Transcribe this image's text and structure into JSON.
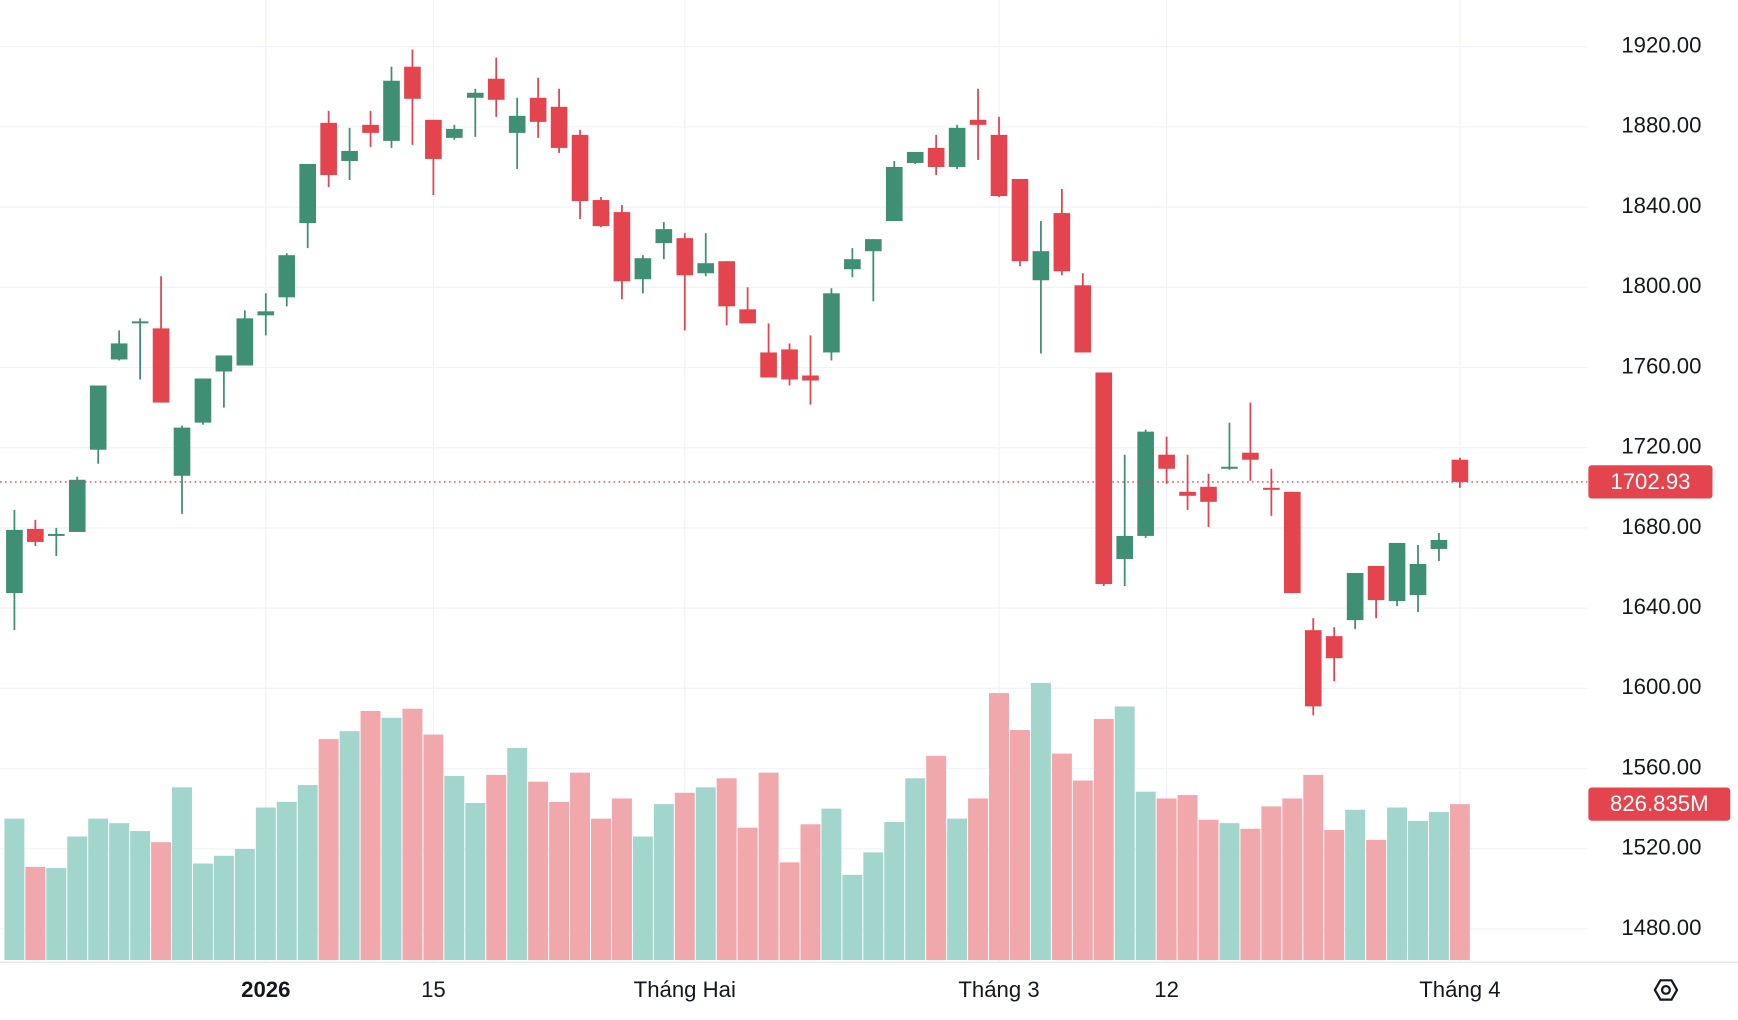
{
  "chart_data": {
    "type": "candlestick",
    "categories": [
      null,
      null,
      null,
      null,
      null,
      null,
      null,
      null,
      null,
      null,
      null,
      null,
      "2026",
      null,
      null,
      null,
      null,
      null,
      null,
      null,
      "15",
      null,
      null,
      null,
      null,
      null,
      null,
      null,
      null,
      null,
      null,
      null,
      "Tháng Hai",
      null,
      null,
      null,
      null,
      null,
      null,
      null,
      null,
      null,
      null,
      null,
      null,
      null,
      null,
      "Tháng 3",
      null,
      null,
      null,
      null,
      null,
      null,
      null,
      "12",
      null,
      null,
      null,
      null,
      null,
      null,
      null,
      null,
      null,
      null,
      null,
      null,
      null,
      "Tháng 4"
    ],
    "open": [
      1647.5,
      1679.5,
      1676,
      1678,
      1719,
      1764,
      1782,
      1779.5,
      1706,
      1732.5,
      1758,
      1761,
      1786,
      1795,
      1832,
      1882,
      1863,
      1881,
      1873,
      1910,
      1883.5,
      1874.5,
      1894.5,
      1904,
      1877,
      1894.5,
      1890,
      1876,
      1843.5,
      1837.5,
      1804,
      1822,
      1824.5,
      1807,
      1813,
      1789,
      1767.5,
      1769,
      1756,
      1767.5,
      1809,
      1818,
      1833,
      1862,
      1869.5,
      1860,
      1883.5,
      1876,
      1854,
      1803.5,
      1837,
      1801,
      1757.5,
      1664.5,
      1676,
      1716.5,
      1698,
      1700.5,
      1709.5,
      1717.5,
      1700,
      1698,
      1629,
      1626,
      1634,
      1661,
      1643.5,
      1646.5,
      1669.5,
      1714
    ],
    "high": [
      1689,
      1684,
      1680,
      1705.5,
      1751,
      1778.5,
      1784.5,
      1805.5,
      1731,
      1754.5,
      1766,
      1788.5,
      1797,
      1817,
      1861.5,
      1888,
      1879.5,
      1888,
      1910,
      1918.5,
      1883.5,
      1881,
      1899,
      1914.5,
      1894.5,
      1904.5,
      1899,
      1878.5,
      1845,
      1841,
      1816,
      1832.5,
      1827,
      1827,
      1813,
      1800,
      1782,
      1772,
      1776,
      1799.5,
      1819.5,
      1824,
      1863,
      1867.5,
      1876,
      1881,
      1899,
      1885,
      1854,
      1833,
      1849,
      1807,
      1757.5,
      1716.5,
      1729,
      1725.5,
      1716.5,
      1707,
      1732.5,
      1742.5,
      1709.5,
      1698,
      1635,
      1630.5,
      1657.5,
      1661,
      1672.5,
      1671.5,
      1677.5,
      1715
    ],
    "low": [
      1629,
      1671,
      1666,
      1678,
      1712,
      1763.5,
      1754,
      1742.5,
      1687,
      1731.5,
      1740,
      1761,
      1776,
      1790.5,
      1819.5,
      1850,
      1853.5,
      1870,
      1869.5,
      1871,
      1846,
      1873.5,
      1875,
      1885,
      1859,
      1874.5,
      1867,
      1834,
      1830,
      1794,
      1797,
      1814,
      1778.5,
      1805.5,
      1781,
      1782,
      1755,
      1751,
      1741.5,
      1763.5,
      1805,
      1793,
      1833,
      1861.5,
      1856,
      1859,
      1863.5,
      1845,
      1810.5,
      1767,
      1806,
      1767.5,
      1651,
      1651,
      1675,
      1702,
      1689,
      1680.5,
      1709,
      1703.5,
      1686,
      1647.5,
      1586.5,
      1603.5,
      1629.5,
      1635,
      1641,
      1638,
      1663.5,
      1700
    ],
    "close": [
      1679,
      1673,
      1677,
      1704,
      1751,
      1772,
      1783,
      1742.5,
      1730,
      1754.5,
      1766,
      1784.5,
      1788,
      1816,
      1861.5,
      1856,
      1868,
      1877,
      1903,
      1894,
      1864,
      1879,
      1897,
      1893.5,
      1885.5,
      1882.5,
      1869.5,
      1843,
      1830.5,
      1803,
      1814.5,
      1829,
      1806,
      1812,
      1790.5,
      1782,
      1755,
      1754,
      1753.5,
      1797,
      1814,
      1824,
      1860,
      1867.5,
      1860,
      1879.5,
      1881,
      1845.5,
      1813,
      1818,
      1808,
      1767.5,
      1652,
      1676,
      1728,
      1709.5,
      1696,
      1693,
      1710.5,
      1714,
      1699,
      1647.5,
      1591,
      1615,
      1657.5,
      1644,
      1672.5,
      1662,
      1674,
      1702.93
    ],
    "volume": [
      750,
      494,
      488,
      655,
      750,
      726,
      684,
      625,
      916,
      512,
      553,
      589,
      809,
      839,
      928,
      1172,
      1214,
      1321,
      1285,
      1333,
      1196,
      976,
      833,
      982,
      1125,
      946,
      839,
      994,
      750,
      857,
      655,
      827,
      887,
      916,
      964,
      702,
      994,
      518,
      720,
      803,
      452,
      571,
      732,
      964,
      1083,
      750,
      857,
      1416,
      1220,
      1470,
      1095,
      952,
      1279,
      1345,
      893,
      857,
      875,
      744,
      726,
      696,
      815,
      857,
      982,
      690,
      797,
      637,
      809,
      738,
      785,
      826.835
    ],
    "volume_label": "826.835M",
    "up_color": "#3f8f74",
    "down_color": "#e3444e",
    "volume_up_color": "#a2d5cb",
    "volume_down_color": "#f0a8ad",
    "ylim": [
      1463.4,
      1943.2
    ],
    "yticks": [
      {
        "value": 1480,
        "label": "1480.00"
      },
      {
        "value": 1520,
        "label": "1520.00"
      },
      {
        "value": 1560,
        "label": "1560.00"
      },
      {
        "value": 1600,
        "label": "1600.00"
      },
      {
        "value": 1640,
        "label": "1640.00"
      },
      {
        "value": 1680,
        "label": "1680.00"
      },
      {
        "value": 1720,
        "label": "1720.00"
      },
      {
        "value": 1760,
        "label": "1760.00"
      },
      {
        "value": 1800,
        "label": "1800.00"
      },
      {
        "value": 1840,
        "label": "1840.00"
      },
      {
        "value": 1880,
        "label": "1880.00"
      },
      {
        "value": 1920,
        "label": "1920.00"
      }
    ],
    "grid": true
  }
}
